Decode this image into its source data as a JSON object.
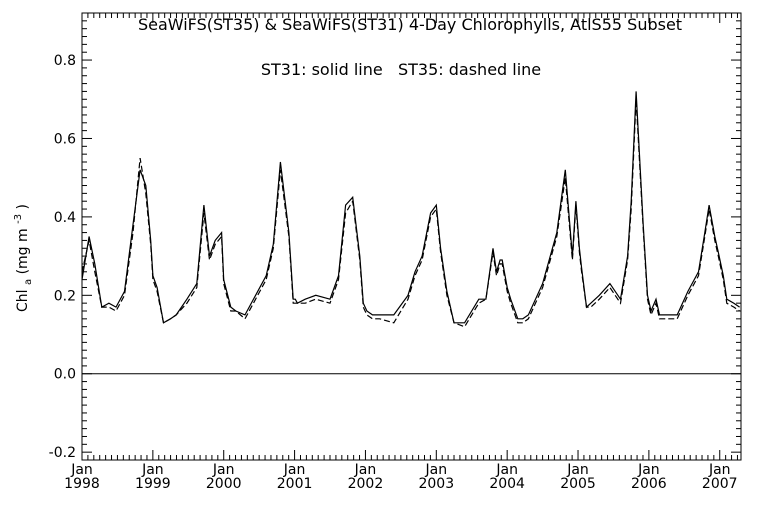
{
  "chart_data": {
    "type": "line",
    "title": "SeaWiFS(ST35) & SeaWiFS(ST31) 4-Day Chlorophylls, AtlS55 Subset",
    "annotation": "ST31: solid line   ST35: dashed line",
    "ylabel": {
      "base": "Chl",
      "sub": "a",
      "units_prefix": " (mg m",
      "sup": "-3",
      "units_suffix": ")"
    },
    "xlim": [
      1998.0,
      2007.3
    ],
    "ylim": [
      -0.22,
      0.92
    ],
    "y_ticks": [
      -0.2,
      0.0,
      0.2,
      0.4,
      0.6,
      0.8
    ],
    "y_tick_labels": [
      "-0.2",
      "0.0",
      "0.2",
      "0.4",
      "0.6",
      "0.8"
    ],
    "x_ticks": [
      {
        "x": 1998,
        "month": "Jan",
        "year": "1998"
      },
      {
        "x": 1999,
        "month": "Jan",
        "year": "1999"
      },
      {
        "x": 2000,
        "month": "Jan",
        "year": "2000"
      },
      {
        "x": 2001,
        "month": "Jan",
        "year": "2001"
      },
      {
        "x": 2002,
        "month": "Jan",
        "year": "2002"
      },
      {
        "x": 2003,
        "month": "Jan",
        "year": "2003"
      },
      {
        "x": 2004,
        "month": "Jan",
        "year": "2004"
      },
      {
        "x": 2005,
        "month": "Jan",
        "year": "2005"
      },
      {
        "x": 2006,
        "month": "Jan",
        "year": "2006"
      },
      {
        "x": 2007,
        "month": "Jan",
        "year": "2007"
      }
    ],
    "zero_line": 0.0,
    "series": [
      {
        "name": "ST31",
        "style": "solid",
        "x": [
          1998.0,
          1998.1,
          1998.18,
          1998.28,
          1998.38,
          1998.48,
          1998.6,
          1998.72,
          1998.82,
          1998.9,
          1998.97,
          1999.0,
          1999.06,
          1999.15,
          1999.25,
          1999.33,
          1999.48,
          1999.62,
          1999.72,
          1999.8,
          1999.88,
          1999.97,
          2000.0,
          2000.1,
          2000.17,
          2000.3,
          2000.45,
          2000.6,
          2000.7,
          2000.8,
          2000.92,
          2000.98,
          2001.01,
          2001.04,
          2001.15,
          2001.3,
          2001.5,
          2001.62,
          2001.72,
          2001.82,
          2001.92,
          2001.97,
          2002.02,
          2002.1,
          2002.2,
          2002.4,
          2002.6,
          2002.7,
          2002.8,
          2002.92,
          2003.0,
          2003.06,
          2003.15,
          2003.25,
          2003.4,
          2003.6,
          2003.7,
          2003.8,
          2003.85,
          2003.9,
          2003.93,
          2004.0,
          2004.05,
          2004.15,
          2004.22,
          2004.3,
          2004.5,
          2004.7,
          2004.82,
          2004.92,
          2004.97,
          2005.02,
          2005.05,
          2005.12,
          2005.18,
          2005.3,
          2005.45,
          2005.6,
          2005.7,
          2005.75,
          2005.82,
          2005.92,
          2005.98,
          2006.03,
          2006.1,
          2006.15,
          2006.22,
          2006.4,
          2006.55,
          2006.7,
          2006.78,
          2006.85,
          2006.93,
          2006.98,
          2007.05,
          2007.1,
          2007.2,
          2007.28
        ],
        "values": [
          0.24,
          0.35,
          0.28,
          0.17,
          0.18,
          0.17,
          0.21,
          0.38,
          0.52,
          0.48,
          0.34,
          0.25,
          0.22,
          0.13,
          0.14,
          0.15,
          0.19,
          0.23,
          0.43,
          0.3,
          0.34,
          0.36,
          0.24,
          0.17,
          0.16,
          0.15,
          0.2,
          0.25,
          0.33,
          0.54,
          0.36,
          0.19,
          0.19,
          0.18,
          0.19,
          0.2,
          0.19,
          0.25,
          0.43,
          0.45,
          0.3,
          0.18,
          0.16,
          0.15,
          0.15,
          0.15,
          0.2,
          0.26,
          0.3,
          0.41,
          0.43,
          0.32,
          0.21,
          0.13,
          0.13,
          0.19,
          0.19,
          0.32,
          0.26,
          0.29,
          0.29,
          0.22,
          0.19,
          0.14,
          0.14,
          0.15,
          0.23,
          0.36,
          0.52,
          0.3,
          0.44,
          0.32,
          0.27,
          0.17,
          0.18,
          0.2,
          0.23,
          0.19,
          0.3,
          0.44,
          0.72,
          0.38,
          0.2,
          0.16,
          0.19,
          0.15,
          0.15,
          0.15,
          0.21,
          0.26,
          0.35,
          0.43,
          0.35,
          0.31,
          0.25,
          0.19,
          0.18,
          0.17
        ]
      },
      {
        "name": "ST35",
        "style": "dashed",
        "x": [
          1998.0,
          1998.1,
          1998.18,
          1998.28,
          1998.38,
          1998.48,
          1998.6,
          1998.72,
          1998.82,
          1998.9,
          1998.97,
          1999.0,
          1999.06,
          1999.15,
          1999.25,
          1999.33,
          1999.48,
          1999.62,
          1999.72,
          1999.8,
          1999.88,
          1999.97,
          2000.0,
          2000.1,
          2000.17,
          2000.3,
          2000.45,
          2000.6,
          2000.7,
          2000.8,
          2000.92,
          2000.98,
          2001.01,
          2001.04,
          2001.15,
          2001.3,
          2001.5,
          2001.62,
          2001.72,
          2001.82,
          2001.92,
          2001.97,
          2002.02,
          2002.1,
          2002.2,
          2002.4,
          2002.6,
          2002.7,
          2002.8,
          2002.92,
          2003.0,
          2003.06,
          2003.15,
          2003.25,
          2003.4,
          2003.6,
          2003.7,
          2003.8,
          2003.85,
          2003.9,
          2003.93,
          2004.0,
          2004.05,
          2004.15,
          2004.22,
          2004.3,
          2004.5,
          2004.7,
          2004.82,
          2004.92,
          2004.97,
          2005.02,
          2005.05,
          2005.12,
          2005.18,
          2005.3,
          2005.45,
          2005.6,
          2005.7,
          2005.75,
          2005.82,
          2005.92,
          2005.98,
          2006.03,
          2006.1,
          2006.15,
          2006.22,
          2006.4,
          2006.55,
          2006.7,
          2006.78,
          2006.85,
          2006.93,
          2006.98,
          2007.05,
          2007.1,
          2007.2,
          2007.28
        ],
        "values": [
          0.26,
          0.34,
          0.26,
          0.17,
          0.17,
          0.16,
          0.2,
          0.36,
          0.55,
          0.46,
          0.33,
          0.24,
          0.21,
          0.13,
          0.14,
          0.15,
          0.18,
          0.22,
          0.41,
          0.29,
          0.33,
          0.35,
          0.23,
          0.16,
          0.16,
          0.14,
          0.19,
          0.24,
          0.32,
          0.52,
          0.35,
          0.18,
          0.18,
          0.18,
          0.18,
          0.19,
          0.18,
          0.24,
          0.41,
          0.44,
          0.29,
          0.17,
          0.15,
          0.14,
          0.14,
          0.13,
          0.19,
          0.25,
          0.29,
          0.4,
          0.42,
          0.31,
          0.2,
          0.13,
          0.12,
          0.18,
          0.19,
          0.31,
          0.25,
          0.28,
          0.28,
          0.21,
          0.18,
          0.13,
          0.13,
          0.14,
          0.22,
          0.35,
          0.5,
          0.29,
          0.43,
          0.31,
          0.26,
          0.17,
          0.17,
          0.19,
          0.22,
          0.18,
          0.29,
          0.42,
          0.7,
          0.37,
          0.19,
          0.15,
          0.18,
          0.14,
          0.14,
          0.14,
          0.2,
          0.25,
          0.34,
          0.42,
          0.34,
          0.3,
          0.24,
          0.18,
          0.17,
          0.16
        ]
      }
    ]
  }
}
